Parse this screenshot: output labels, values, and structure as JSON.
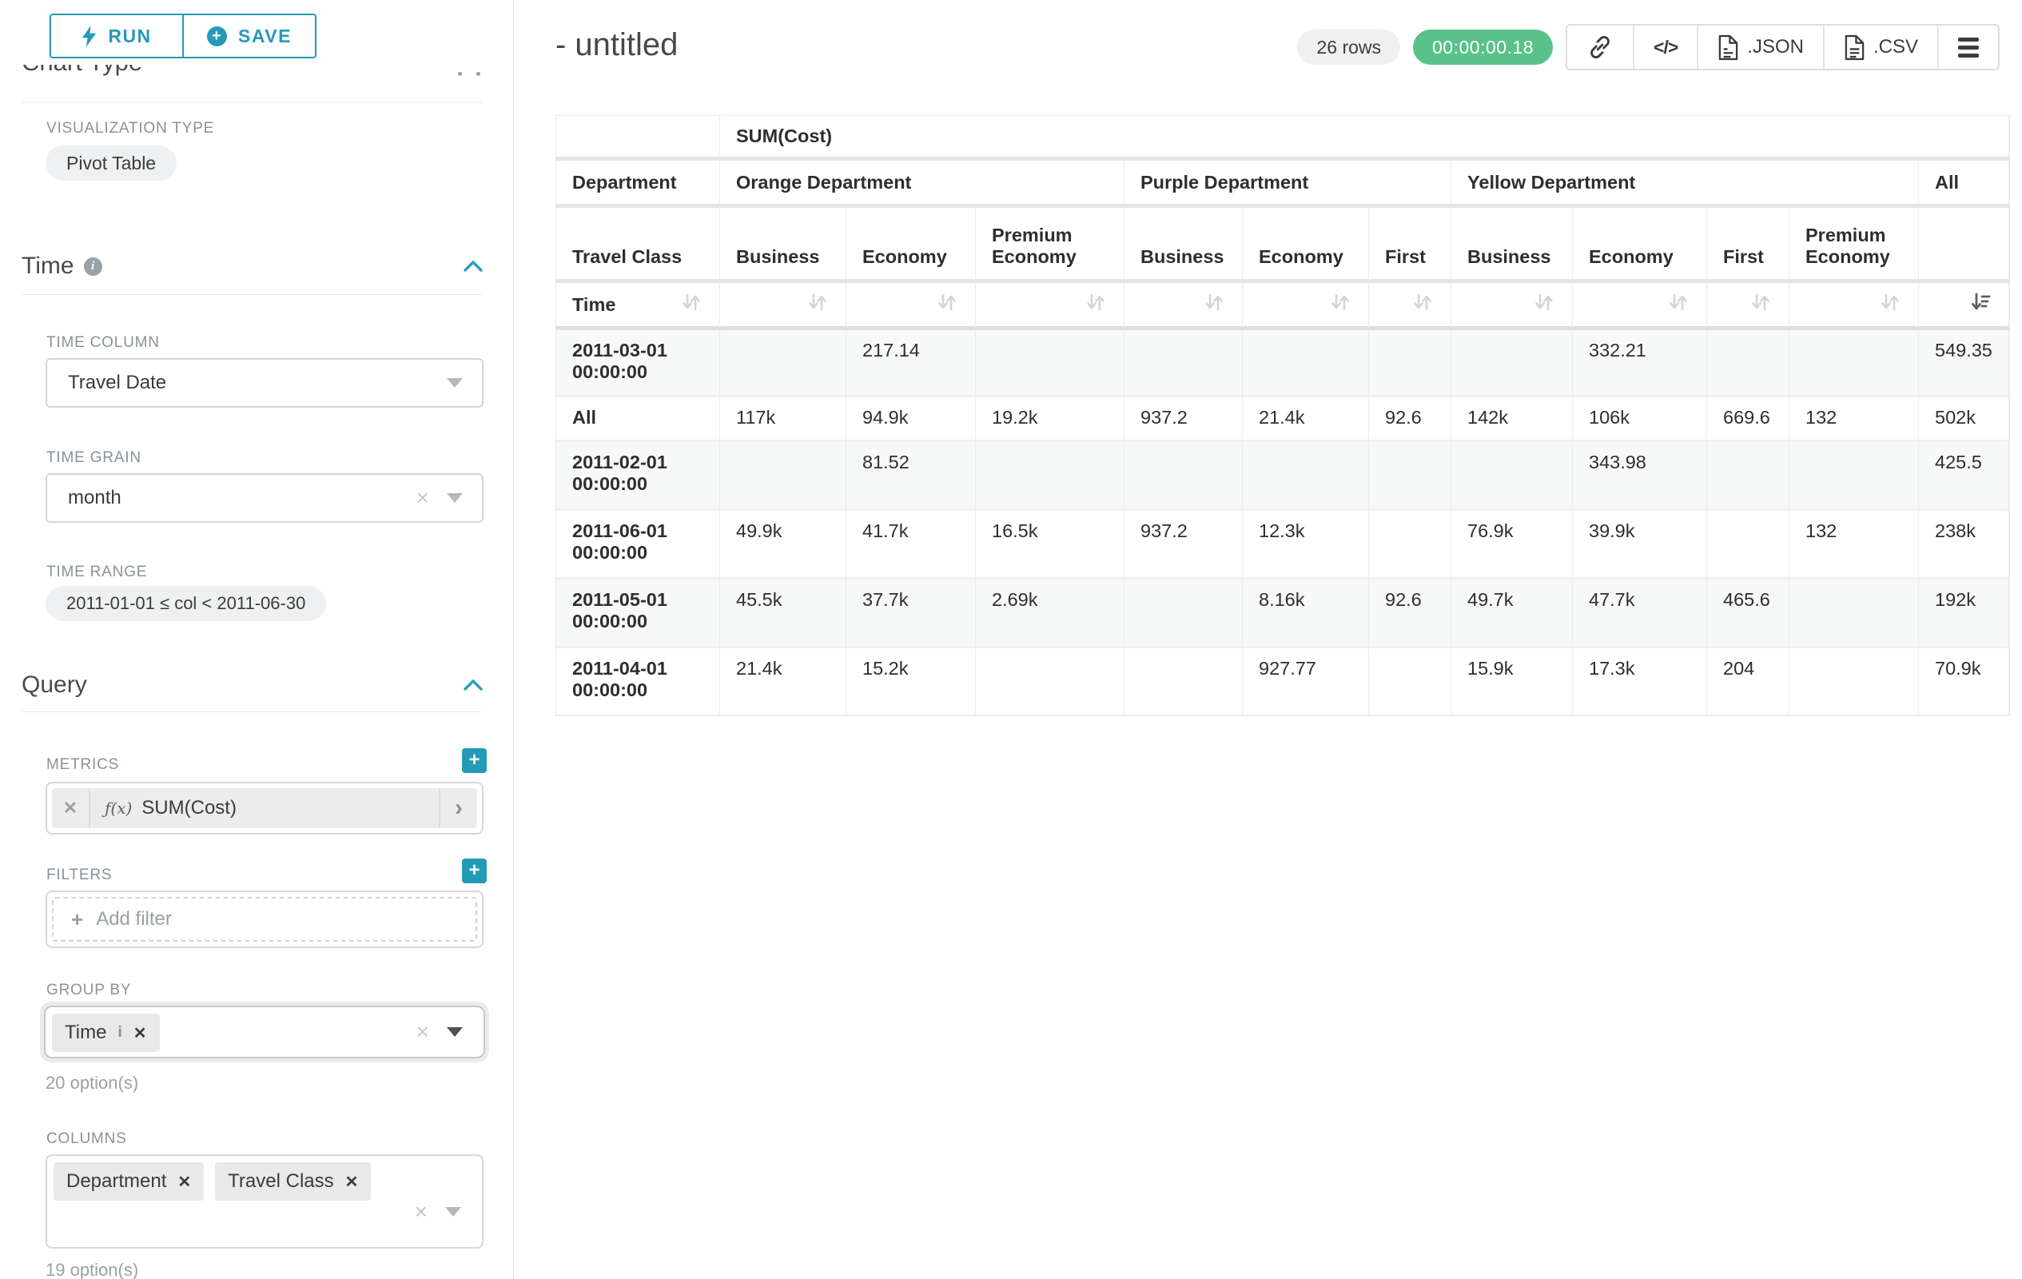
{
  "icons": {
    "fx": "ƒ(x)",
    "chevron_right": "›",
    "pill_remove": "✕",
    "clear": "×",
    "code": "</>",
    "add_filter_plus": "+"
  },
  "colors": {
    "primary": "#2599B8",
    "timer_green": "#5AC189",
    "label_gray": "#879399",
    "text_dark": "#3B3B3B"
  },
  "sidebar": {
    "run_button": "RUN",
    "save_button": "SAVE",
    "chart_type_heading": "Chart Type",
    "visualization_type_label": "VISUALIZATION TYPE",
    "visualization_type_value": "Pivot Table",
    "time": {
      "title": "Time",
      "time_column_label": "TIME COLUMN",
      "time_column_value": "Travel Date",
      "time_grain_label": "TIME GRAIN",
      "time_grain_value": "month",
      "time_range_label": "TIME RANGE",
      "time_range_value": "2011-01-01 ≤ col < 2011-06-30"
    },
    "query": {
      "title": "Query",
      "metrics_label": "METRICS",
      "metric": "SUM(Cost)",
      "filters_label": "FILTERS",
      "add_filter_label": "Add filter",
      "group_by_label": "GROUP BY",
      "group_by_items": [
        "Time"
      ],
      "group_by_hint": "20 option(s)",
      "columns_label": "COLUMNS",
      "columns_items": [
        "Department",
        "Travel Class"
      ],
      "columns_hint": "19 option(s)"
    }
  },
  "header": {
    "title": "- untitled",
    "row_count": "26 rows",
    "timer": "00:00:00.18",
    "json_label": ".JSON",
    "csv_label": ".CSV"
  },
  "table": {
    "metric_header": "SUM(Cost)",
    "column_dims": [
      "Department",
      "Travel Class"
    ],
    "row_dim": "Time",
    "col_groups": [
      {
        "label": "Orange Department",
        "span": 3
      },
      {
        "label": "Purple Department",
        "span": 3
      },
      {
        "label": "Yellow Department",
        "span": 4
      },
      {
        "label": "All",
        "span": 1
      }
    ],
    "subcolumns": [
      "Business",
      "Economy",
      "Premium Economy",
      "Business",
      "Economy",
      "First",
      "Business",
      "Economy",
      "First",
      "Premium Economy",
      ""
    ],
    "sort": {
      "column": "All",
      "direction": "desc"
    },
    "rows": [
      {
        "label": "2011-03-01 00:00:00",
        "values": [
          "",
          "217.14",
          "",
          "",
          "",
          "",
          "",
          "332.21",
          "",
          "",
          "549.35"
        ]
      },
      {
        "label": "All",
        "values": [
          "117k",
          "94.9k",
          "19.2k",
          "937.2",
          "21.4k",
          "92.6",
          "142k",
          "106k",
          "669.6",
          "132",
          "502k"
        ]
      },
      {
        "label": "2011-02-01 00:00:00",
        "values": [
          "",
          "81.52",
          "",
          "",
          "",
          "",
          "",
          "343.98",
          "",
          "",
          "425.5"
        ]
      },
      {
        "label": "2011-06-01 00:00:00",
        "values": [
          "49.9k",
          "41.7k",
          "16.5k",
          "937.2",
          "12.3k",
          "",
          "76.9k",
          "39.9k",
          "",
          "132",
          "238k"
        ]
      },
      {
        "label": "2011-05-01 00:00:00",
        "values": [
          "45.5k",
          "37.7k",
          "2.69k",
          "",
          "8.16k",
          "92.6",
          "49.7k",
          "47.7k",
          "465.6",
          "",
          "192k"
        ]
      },
      {
        "label": "2011-04-01 00:00:00",
        "values": [
          "21.4k",
          "15.2k",
          "",
          "",
          "927.77",
          "",
          "15.9k",
          "17.3k",
          "204",
          "",
          "70.9k"
        ]
      }
    ]
  }
}
